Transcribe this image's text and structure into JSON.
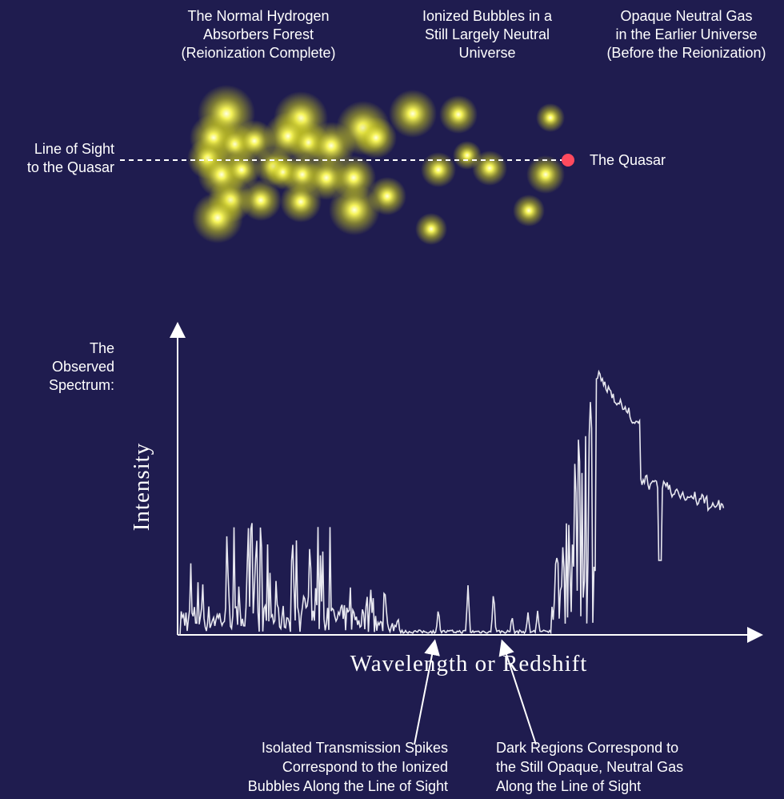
{
  "labels": {
    "forest": [
      "The Normal Hydrogen",
      "Absorbers Forest",
      "(Reionization Complete)"
    ],
    "bubbles": [
      "Ionized Bubbles in a",
      "Still Largely Neutral",
      "Universe"
    ],
    "opaque": [
      "Opaque Neutral Gas",
      "in the Earlier Universe",
      "(Before the Reionization)"
    ],
    "line_of_sight": [
      "Line of Sight",
      "to the Quasar"
    ],
    "quasar": "The Quasar",
    "spectrum": [
      "The",
      "Observed",
      "Spectrum:"
    ],
    "y_axis": "Intensity",
    "x_axis": "Wavelength or Redshift",
    "spikes_note": [
      "Isolated Transmission Spikes",
      "Correspond to the Ionized",
      "Bubbles Along the Line of Sight"
    ],
    "dark_note": [
      "Dark Regions Correspond to",
      "the Still Opaque, Neutral Gas",
      "Along the Line of Sight"
    ]
  }
}
